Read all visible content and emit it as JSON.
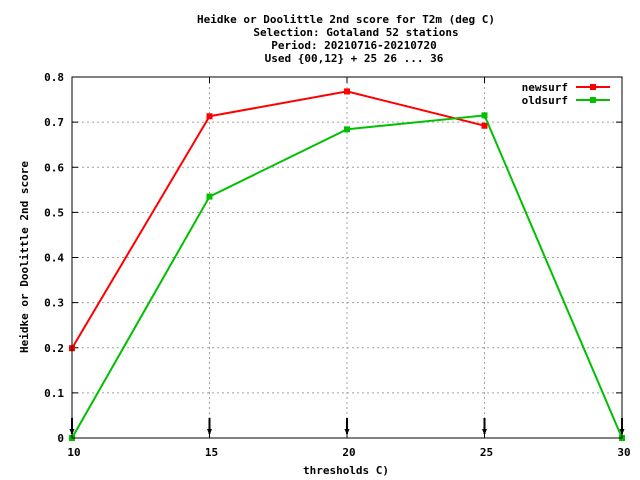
{
  "chart_data": {
    "type": "line",
    "title_lines": [
      "Heidke or Doolittle 2nd score  for T2m (deg C)",
      "Selection: Gotaland     52 stations",
      "Period: 20210716-20210720",
      "Used {00,12} + 25 26 ... 36"
    ],
    "xlabel": "thresholds C)",
    "ylabel": "Heidke or Doolittle 2nd score",
    "xlim": [
      10,
      30
    ],
    "ylim": [
      0,
      0.8
    ],
    "xticks": [
      10,
      15,
      20,
      25,
      30
    ],
    "xtick_labels": [
      "10",
      "15",
      "20",
      "25",
      "30"
    ],
    "yticks": [
      0,
      0.1,
      0.2,
      0.3,
      0.4,
      0.5,
      0.6,
      0.7,
      0.8
    ],
    "ytick_labels": [
      "0",
      "0.1",
      "0.2",
      "0.3",
      "0.4",
      "0.5",
      "0.6",
      "0.7",
      "0.8"
    ],
    "grid": true,
    "legend_position": "top-right",
    "series": [
      {
        "name": "newsurf",
        "color": "#ff0000",
        "x": [
          10,
          15,
          20,
          25
        ],
        "y": [
          0.199,
          0.713,
          0.768,
          0.692
        ]
      },
      {
        "name": "oldsurf",
        "color": "#00c000",
        "x": [
          10,
          15,
          20,
          25,
          30
        ],
        "y": [
          0.0,
          0.535,
          0.684,
          0.715,
          0.0
        ]
      }
    ],
    "markers_x": [
      10,
      15,
      20,
      25,
      30
    ]
  }
}
